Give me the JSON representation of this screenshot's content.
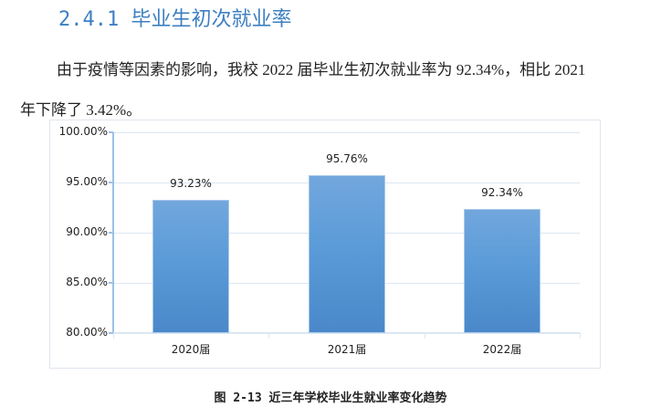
{
  "document": {
    "section_heading": "2.4.1 毕业生初次就业率",
    "paragraph_line1": "由于疫情等因素的影响，我校 2022 届毕业生初次就业率为 92.34%，相比 2021",
    "paragraph_line2": "年下降了 3.42%。",
    "figure_caption": "图 2-13  近三年学校毕业生就业率变化趋势"
  },
  "colors": {
    "heading": "#3e7fc1",
    "bar_fill_top": "#72a7dd",
    "bar_fill_bottom": "#4a88c9",
    "gridline": "#dbe7f3",
    "axis": "#9cc1e6"
  },
  "chart_data": {
    "type": "bar",
    "title": "近三年学校毕业生就业率变化趋势",
    "categories": [
      "2020届",
      "2021届",
      "2022届"
    ],
    "values": [
      93.23,
      95.76,
      92.34
    ],
    "value_labels": [
      "93.23%",
      "95.76%",
      "92.34%"
    ],
    "xlabel": "",
    "ylabel": "",
    "ylim": [
      80,
      100
    ],
    "yticks": [
      80,
      85,
      90,
      95,
      100
    ],
    "ytick_labels": [
      "80.00%",
      "85.00%",
      "90.00%",
      "95.00%",
      "100.00%"
    ],
    "grid": true,
    "legend": "none"
  }
}
